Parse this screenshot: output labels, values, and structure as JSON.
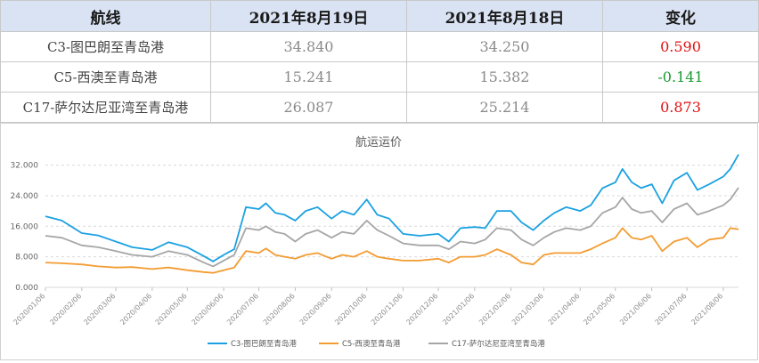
{
  "table": {
    "headers": [
      "航线",
      "2021年8月19日",
      "2021年8月18日",
      "变化"
    ],
    "rows": [
      {
        "route": "C3-图巴朗至青岛港",
        "today": "34.840",
        "yesterday": "34.250",
        "change": "0.590",
        "direction": "up"
      },
      {
        "route": "C5-西澳至青岛港",
        "today": "15.241",
        "yesterday": "15.382",
        "change": "-0.141",
        "direction": "down"
      },
      {
        "route": "C17-萨尔达尼亚湾至青岛港",
        "today": "26.087",
        "yesterday": "25.214",
        "change": "0.873",
        "direction": "up"
      }
    ],
    "colors": {
      "up": "#e01010",
      "down": "#1a9a30",
      "header_bg": "#dae3f3"
    }
  },
  "chart_data": {
    "type": "line",
    "title": "航运运价",
    "x_ticks": [
      "2020/01/06",
      "2020/02/06",
      "2020/03/06",
      "2020/04/06",
      "2020/05/06",
      "2020/06/06",
      "2020/07/06",
      "2020/08/06",
      "2020/09/06",
      "2020/10/06",
      "2020/11/06",
      "2020/12/06",
      "2021/01/06",
      "2021/02/06",
      "2021/03/06",
      "2021/04/06",
      "2021/05/06",
      "2021/06/06",
      "2021/07/06",
      "2021/08/06"
    ],
    "y_ticks": [
      "0.000",
      "8.000",
      "16.000",
      "24.000",
      "32.000"
    ],
    "ylim": [
      0,
      34
    ],
    "grid": "horizontal dashed",
    "legend_position": "bottom",
    "series": [
      {
        "name": "C3-图巴朗至青岛港",
        "color": "#1ba1e2",
        "points": [
          [
            "2020/01/06",
            18.6
          ],
          [
            "2020/01/20",
            17.5
          ],
          [
            "2020/02/06",
            14.2
          ],
          [
            "2020/02/20",
            13.6
          ],
          [
            "2020/03/06",
            12.0
          ],
          [
            "2020/03/20",
            10.5
          ],
          [
            "2020/04/06",
            9.8
          ],
          [
            "2020/04/20",
            11.8
          ],
          [
            "2020/05/06",
            10.5
          ],
          [
            "2020/05/20",
            8.2
          ],
          [
            "2020/05/28",
            6.8
          ],
          [
            "2020/06/06",
            8.5
          ],
          [
            "2020/06/15",
            10.0
          ],
          [
            "2020/06/25",
            21.0
          ],
          [
            "2020/07/06",
            20.5
          ],
          [
            "2020/07/12",
            22.0
          ],
          [
            "2020/07/20",
            19.5
          ],
          [
            "2020/07/28",
            19.0
          ],
          [
            "2020/08/06",
            17.5
          ],
          [
            "2020/08/15",
            20.0
          ],
          [
            "2020/08/25",
            21.0
          ],
          [
            "2020/09/06",
            18.0
          ],
          [
            "2020/09/15",
            20.0
          ],
          [
            "2020/09/25",
            19.0
          ],
          [
            "2020/10/06",
            23.0
          ],
          [
            "2020/10/15",
            19.0
          ],
          [
            "2020/10/25",
            18.0
          ],
          [
            "2020/11/06",
            14.0
          ],
          [
            "2020/11/20",
            13.5
          ],
          [
            "2020/12/06",
            14.0
          ],
          [
            "2020/12/15",
            12.0
          ],
          [
            "2020/12/25",
            15.5
          ],
          [
            "2021/01/06",
            15.8
          ],
          [
            "2021/01/15",
            15.5
          ],
          [
            "2021/01/25",
            20.0
          ],
          [
            "2021/02/06",
            20.0
          ],
          [
            "2021/02/15",
            17.0
          ],
          [
            "2021/02/25",
            15.0
          ],
          [
            "2021/03/06",
            17.5
          ],
          [
            "2021/03/15",
            19.5
          ],
          [
            "2021/03/25",
            21.0
          ],
          [
            "2021/04/06",
            20.0
          ],
          [
            "2021/04/15",
            21.5
          ],
          [
            "2021/04/25",
            26.0
          ],
          [
            "2021/05/06",
            27.5
          ],
          [
            "2021/05/12",
            31.0
          ],
          [
            "2021/05/20",
            27.5
          ],
          [
            "2021/05/28",
            26.0
          ],
          [
            "2021/06/06",
            27.0
          ],
          [
            "2021/06/15",
            22.0
          ],
          [
            "2021/06/25",
            28.0
          ],
          [
            "2021/07/06",
            30.0
          ],
          [
            "2021/07/15",
            25.5
          ],
          [
            "2021/07/25",
            27.0
          ],
          [
            "2021/08/06",
            29.0
          ],
          [
            "2021/08/12",
            31.0
          ],
          [
            "2021/08/19",
            34.8
          ]
        ]
      },
      {
        "name": "C5-西澳至青岛港",
        "color": "#f39c32",
        "points": [
          [
            "2020/01/06",
            6.5
          ],
          [
            "2020/01/20",
            6.3
          ],
          [
            "2020/02/06",
            6.0
          ],
          [
            "2020/02/20",
            5.5
          ],
          [
            "2020/03/06",
            5.2
          ],
          [
            "2020/03/20",
            5.3
          ],
          [
            "2020/04/06",
            4.8
          ],
          [
            "2020/04/20",
            5.2
          ],
          [
            "2020/05/06",
            4.5
          ],
          [
            "2020/05/20",
            4.0
          ],
          [
            "2020/05/28",
            3.8
          ],
          [
            "2020/06/06",
            4.5
          ],
          [
            "2020/06/15",
            5.2
          ],
          [
            "2020/06/25",
            9.5
          ],
          [
            "2020/07/06",
            9.0
          ],
          [
            "2020/07/12",
            10.2
          ],
          [
            "2020/07/20",
            8.5
          ],
          [
            "2020/07/28",
            8.0
          ],
          [
            "2020/08/06",
            7.5
          ],
          [
            "2020/08/15",
            8.5
          ],
          [
            "2020/08/25",
            9.0
          ],
          [
            "2020/09/06",
            7.5
          ],
          [
            "2020/09/15",
            8.5
          ],
          [
            "2020/09/25",
            8.0
          ],
          [
            "2020/10/06",
            9.5
          ],
          [
            "2020/10/15",
            8.0
          ],
          [
            "2020/10/25",
            7.5
          ],
          [
            "2020/11/06",
            7.0
          ],
          [
            "2020/11/20",
            7.0
          ],
          [
            "2020/12/06",
            7.5
          ],
          [
            "2020/12/15",
            6.5
          ],
          [
            "2020/12/25",
            8.0
          ],
          [
            "2021/01/06",
            8.0
          ],
          [
            "2021/01/15",
            8.5
          ],
          [
            "2021/01/25",
            10.0
          ],
          [
            "2021/02/06",
            8.5
          ],
          [
            "2021/02/15",
            6.5
          ],
          [
            "2021/02/25",
            6.0
          ],
          [
            "2021/03/06",
            8.5
          ],
          [
            "2021/03/15",
            9.0
          ],
          [
            "2021/03/25",
            9.0
          ],
          [
            "2021/04/06",
            9.0
          ],
          [
            "2021/04/15",
            10.0
          ],
          [
            "2021/04/25",
            11.5
          ],
          [
            "2021/05/06",
            13.0
          ],
          [
            "2021/05/12",
            15.5
          ],
          [
            "2021/05/20",
            13.0
          ],
          [
            "2021/05/28",
            12.5
          ],
          [
            "2021/06/06",
            13.5
          ],
          [
            "2021/06/15",
            9.5
          ],
          [
            "2021/06/25",
            12.0
          ],
          [
            "2021/07/06",
            13.0
          ],
          [
            "2021/07/15",
            10.5
          ],
          [
            "2021/07/25",
            12.5
          ],
          [
            "2021/08/06",
            13.0
          ],
          [
            "2021/08/12",
            15.5
          ],
          [
            "2021/08/19",
            15.2
          ]
        ]
      },
      {
        "name": "C17-萨尔达尼亚湾至青岛港",
        "color": "#a6a6a6",
        "points": [
          [
            "2020/01/06",
            13.5
          ],
          [
            "2020/01/20",
            13.0
          ],
          [
            "2020/02/06",
            11.0
          ],
          [
            "2020/02/20",
            10.5
          ],
          [
            "2020/03/06",
            9.5
          ],
          [
            "2020/03/20",
            8.5
          ],
          [
            "2020/04/06",
            8.0
          ],
          [
            "2020/04/20",
            9.5
          ],
          [
            "2020/05/06",
            8.5
          ],
          [
            "2020/05/20",
            6.5
          ],
          [
            "2020/05/28",
            5.5
          ],
          [
            "2020/06/06",
            7.0
          ],
          [
            "2020/06/15",
            8.5
          ],
          [
            "2020/06/25",
            15.5
          ],
          [
            "2020/07/06",
            15.0
          ],
          [
            "2020/07/12",
            16.0
          ],
          [
            "2020/07/20",
            14.5
          ],
          [
            "2020/07/28",
            14.0
          ],
          [
            "2020/08/06",
            12.0
          ],
          [
            "2020/08/15",
            14.0
          ],
          [
            "2020/08/25",
            15.0
          ],
          [
            "2020/09/06",
            13.0
          ],
          [
            "2020/09/15",
            14.5
          ],
          [
            "2020/09/25",
            14.0
          ],
          [
            "2020/10/06",
            17.5
          ],
          [
            "2020/10/15",
            15.0
          ],
          [
            "2020/10/25",
            13.5
          ],
          [
            "2020/11/06",
            11.5
          ],
          [
            "2020/11/20",
            11.0
          ],
          [
            "2020/12/06",
            11.0
          ],
          [
            "2020/12/15",
            10.0
          ],
          [
            "2020/12/25",
            12.0
          ],
          [
            "2021/01/06",
            11.5
          ],
          [
            "2021/01/15",
            12.5
          ],
          [
            "2021/01/25",
            15.5
          ],
          [
            "2021/02/06",
            15.0
          ],
          [
            "2021/02/15",
            12.5
          ],
          [
            "2021/02/25",
            11.0
          ],
          [
            "2021/03/06",
            13.0
          ],
          [
            "2021/03/15",
            14.5
          ],
          [
            "2021/03/25",
            15.5
          ],
          [
            "2021/04/06",
            15.0
          ],
          [
            "2021/04/15",
            16.0
          ],
          [
            "2021/04/25",
            19.5
          ],
          [
            "2021/05/06",
            21.0
          ],
          [
            "2021/05/12",
            23.5
          ],
          [
            "2021/05/20",
            20.5
          ],
          [
            "2021/05/28",
            19.5
          ],
          [
            "2021/06/06",
            20.0
          ],
          [
            "2021/06/15",
            17.0
          ],
          [
            "2021/06/25",
            20.5
          ],
          [
            "2021/07/06",
            22.0
          ],
          [
            "2021/07/15",
            19.0
          ],
          [
            "2021/07/25",
            20.0
          ],
          [
            "2021/08/06",
            21.5
          ],
          [
            "2021/08/12",
            23.0
          ],
          [
            "2021/08/19",
            26.1
          ]
        ]
      }
    ]
  }
}
